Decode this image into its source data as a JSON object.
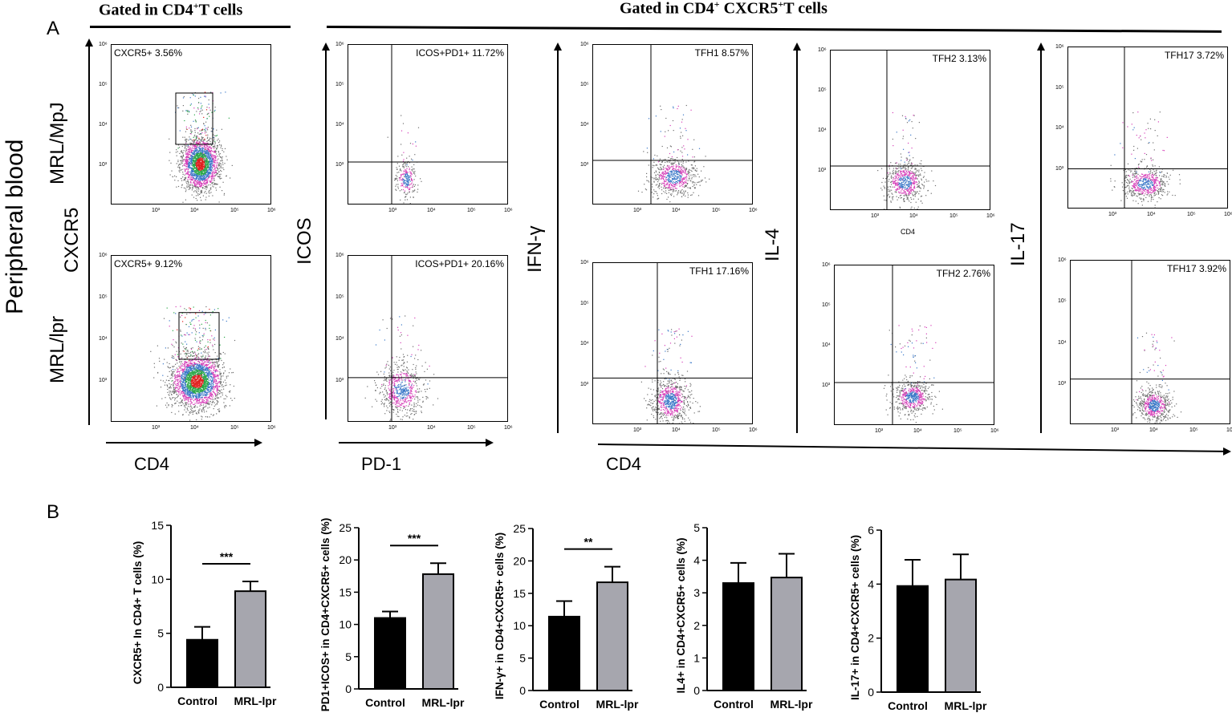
{
  "figure": {
    "panel_a_letter": "A",
    "panel_b_letter": "B",
    "header_cd4": "Gated in CD4",
    "header_cd4_sup": "+",
    "header_cd4_tail": "T cells",
    "header_cxcr5_a": "Gated in CD4",
    "header_cxcr5_sup1": "+",
    "header_cxcr5_b": " CXCR5",
    "header_cxcr5_sup2": "+",
    "header_cxcr5_tail": "T cells",
    "tissue_label": "Peripheral blood",
    "row1_label": "MRL/MpJ",
    "row2_label": "MRL/lpr",
    "y_axis_cxcr5": "CXCR5",
    "y_axis_icos": "ICOS",
    "y_axis_ifng": "IFN-γ",
    "y_axis_il4": "IL-4",
    "y_axis_il17": "IL-17",
    "x_axis_cd4_left": "CD4",
    "x_axis_pd1": "PD-1",
    "x_axis_cd4_right": "CD4",
    "x_axis_small_cd4": "CD4",
    "tick_labels": [
      "10³",
      "10⁴",
      "10⁵",
      "10⁶"
    ],
    "ytick_labels": [
      "10⁶",
      "10⁵",
      "10⁴",
      "10³"
    ]
  },
  "flow_panels": [
    {
      "gate": "CXCR5+ 3.56%",
      "row": "MRL/MpJ"
    },
    {
      "gate": "CXCR5+ 9.12%",
      "row": "MRL/lpr"
    },
    {
      "gate": "ICOS+PD1+ 11.72%",
      "row": "MRL/MpJ"
    },
    {
      "gate": "ICOS+PD1+ 20.16%",
      "row": "MRL/lpr"
    },
    {
      "gate": "TFH1 8.57%",
      "row": "MRL/MpJ"
    },
    {
      "gate": "TFH1 17.16%",
      "row": "MRL/lpr"
    },
    {
      "gate": "TFH2 3.13%",
      "row": "MRL/MpJ"
    },
    {
      "gate": "TFH2 2.76%",
      "row": "MRL/lpr"
    },
    {
      "gate": "TFH17 3.72%",
      "row": "MRL/MpJ"
    },
    {
      "gate": "TFH17 3.92%",
      "row": "MRL/lpr"
    }
  ],
  "colors": {
    "control": "#000000",
    "mrl_lpr": "#a6a6ae",
    "dots_gray": "#6e6e6e",
    "dots_pink": "#d63fb8",
    "dots_blue": "#3a78c8",
    "dots_green": "#2ca84a",
    "dots_red": "#e0201e"
  },
  "chart_data": [
    {
      "type": "bar",
      "categories": [
        "Control",
        "MRL-lpr"
      ],
      "values": [
        4.4,
        8.9
      ],
      "errors": [
        1.2,
        0.9
      ],
      "ylabel": "CXCR5+ In CD4+ T cells (%)",
      "ylim": [
        0,
        15
      ],
      "yticks": [
        0,
        5,
        10,
        15
      ],
      "significance": "***"
    },
    {
      "type": "bar",
      "categories": [
        "Control",
        "MRL-lpr"
      ],
      "values": [
        11.0,
        17.8
      ],
      "errors": [
        1.0,
        1.7
      ],
      "ylabel": "PD1+ICOS+ in CD4+CXCR5+ cells (%)",
      "ylim": [
        0,
        25
      ],
      "yticks": [
        0,
        5,
        10,
        15,
        20,
        25
      ],
      "significance": "***"
    },
    {
      "type": "bar",
      "categories": [
        "Control",
        "MRL-lpr"
      ],
      "values": [
        11.4,
        16.7
      ],
      "errors": [
        2.4,
        2.4
      ],
      "ylabel": "IFN-γ+ in CD4+CXCR5+ cells (%)",
      "ylim": [
        0,
        25
      ],
      "yticks": [
        0,
        5,
        10,
        15,
        20,
        25
      ],
      "significance": "**"
    },
    {
      "type": "bar",
      "categories": [
        "Control",
        "MRL-lpr"
      ],
      "values": [
        3.3,
        3.47
      ],
      "errors": [
        0.62,
        0.73
      ],
      "ylabel": "IL4+ in CD4+CXCR5+ cells (%)",
      "ylim": [
        0,
        5
      ],
      "yticks": [
        0,
        1,
        2,
        3,
        4,
        5
      ],
      "significance": ""
    },
    {
      "type": "bar",
      "categories": [
        "Control",
        "MRL-lpr"
      ],
      "values": [
        3.93,
        4.17
      ],
      "errors": [
        0.97,
        0.93
      ],
      "ylabel": "IL-17+ in CD4+CXCR5+ cells (%)",
      "ylim": [
        0,
        6
      ],
      "yticks": [
        0,
        2,
        4,
        6
      ],
      "significance": ""
    }
  ]
}
